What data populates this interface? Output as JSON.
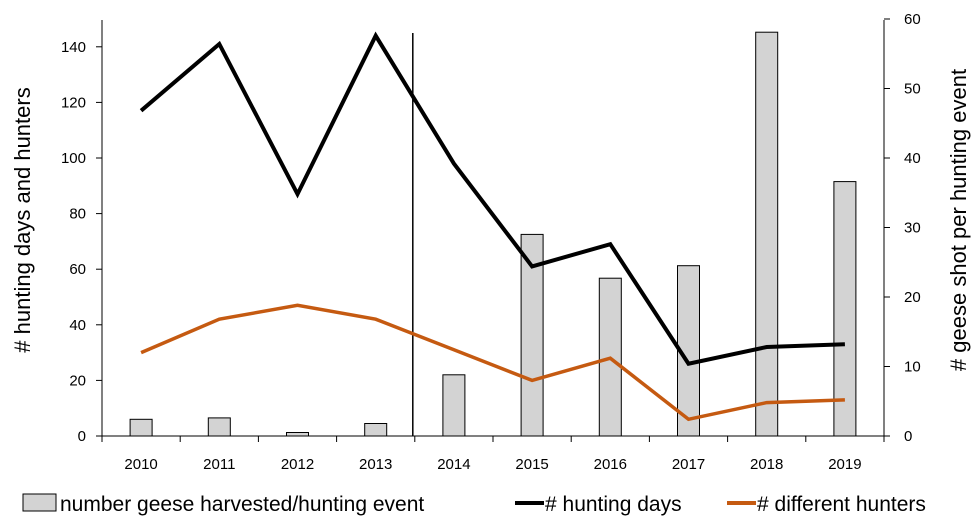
{
  "chart_data": {
    "type": "bar+line",
    "categories": [
      "2010",
      "2011",
      "2012",
      "2013",
      "2014",
      "2015",
      "2016",
      "2017",
      "2018",
      "2019"
    ],
    "series": [
      {
        "name": "number geese harvested/hunting event",
        "kind": "bar",
        "axis": "right",
        "color": "#d3d3d3",
        "values": [
          2.4,
          2.6,
          0.5,
          1.8,
          8.8,
          29.0,
          22.7,
          24.5,
          58.1,
          36.6
        ]
      },
      {
        "name": "# hunting days",
        "kind": "line",
        "axis": "left",
        "color": "#000000",
        "values": [
          117,
          141,
          87,
          144,
          98,
          61,
          69,
          26,
          32,
          33
        ]
      },
      {
        "name": "# different hunters",
        "kind": "line",
        "axis": "left",
        "color": "#c55a11",
        "values": [
          30,
          42,
          47,
          42,
          31,
          20,
          28,
          6,
          12,
          13
        ]
      }
    ],
    "ylabel": "# hunting days and hunters",
    "y2label": "# geese shot per hunting event",
    "xlabel": "",
    "ylim": [
      0,
      150
    ],
    "y2lim": [
      0,
      60
    ],
    "yticks": [
      0,
      20,
      40,
      60,
      80,
      100,
      120,
      140
    ],
    "y2ticks": [
      0,
      10,
      20,
      30,
      40,
      50,
      60
    ],
    "vertical_marker_between": [
      "2013",
      "2014"
    ],
    "legend_position": "bottom",
    "grid": false
  }
}
